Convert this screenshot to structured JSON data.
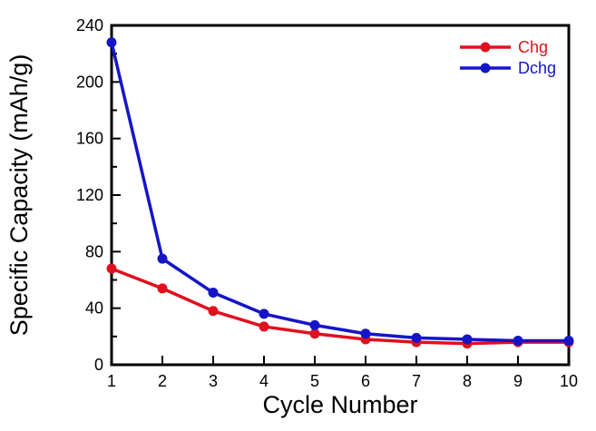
{
  "chart_data": {
    "type": "line",
    "title": "",
    "xlabel": "Cycle Number",
    "ylabel": "Specific Capacity (mAh/g)",
    "x": [
      1,
      2,
      3,
      4,
      5,
      6,
      7,
      8,
      9,
      10
    ],
    "series": [
      {
        "name": "Chg",
        "color": "#e1101e",
        "values": [
          68,
          54,
          38,
          27,
          22,
          18,
          16,
          15,
          16,
          16
        ]
      },
      {
        "name": "Dchg",
        "color": "#1515c8",
        "values": [
          228,
          75,
          51,
          36,
          28,
          22,
          19,
          18,
          17,
          17
        ]
      }
    ],
    "xlim": [
      1,
      10
    ],
    "ylim": [
      0,
      240
    ],
    "x_major_step": 1,
    "y_major_step": 40,
    "y_minor_step": 20,
    "grid": false,
    "legend_position": "top-right",
    "axis_color": "#000000",
    "tick_direction": "in",
    "background": "#ffffff"
  }
}
